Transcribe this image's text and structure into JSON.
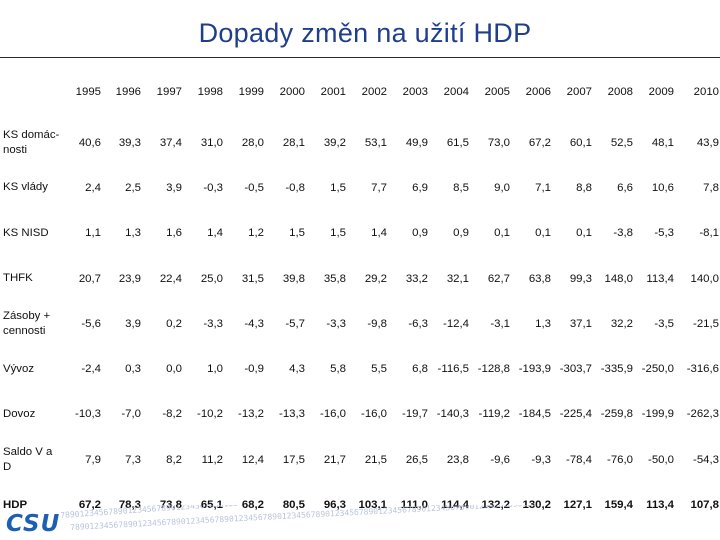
{
  "title": "Dopady změn na užití HDP",
  "years": [
    "1995",
    "1996",
    "1997",
    "1998",
    "1999",
    "2000",
    "2001",
    "2002",
    "2003",
    "2004",
    "2005",
    "2006",
    "2007",
    "2008",
    "2009",
    "2010"
  ],
  "rows": [
    {
      "label": "KS domác-nosti",
      "values": [
        "40,6",
        "39,3",
        "37,4",
        "31,0",
        "28,0",
        "28,1",
        "39,2",
        "53,1",
        "49,9",
        "61,5",
        "73,0",
        "67,2",
        "60,1",
        "52,5",
        "48,1",
        "43,9"
      ]
    },
    {
      "label": "KS vlády",
      "values": [
        "2,4",
        "2,5",
        "3,9",
        "-0,3",
        "-0,5",
        "-0,8",
        "1,5",
        "7,7",
        "6,9",
        "8,5",
        "9,0",
        "7,1",
        "8,8",
        "6,6",
        "10,6",
        "7,8"
      ]
    },
    {
      "label": "KS NISD",
      "values": [
        "1,1",
        "1,3",
        "1,6",
        "1,4",
        "1,2",
        "1,5",
        "1,5",
        "1,4",
        "0,9",
        "0,9",
        "0,1",
        "0,1",
        "0,1",
        "-3,8",
        "-5,3",
        "-8,1"
      ]
    },
    {
      "label": "THFK",
      "values": [
        "20,7",
        "23,9",
        "22,4",
        "25,0",
        "31,5",
        "39,8",
        "35,8",
        "29,2",
        "33,2",
        "32,1",
        "62,7",
        "63,8",
        "99,3",
        "148,0",
        "113,4",
        "140,0"
      ]
    },
    {
      "label": "Zásoby + cennosti",
      "values": [
        "-5,6",
        "3,9",
        "0,2",
        "-3,3",
        "-4,3",
        "-5,7",
        "-3,3",
        "-9,8",
        "-6,3",
        "-12,4",
        "-3,1",
        "1,3",
        "37,1",
        "32,2",
        "-3,5",
        "-21,5"
      ]
    },
    {
      "label": "Vývoz",
      "values": [
        "-2,4",
        "0,3",
        "0,0",
        "1,0",
        "-0,9",
        "4,3",
        "5,8",
        "5,5",
        "6,8",
        "-116,5",
        "-128,8",
        "-193,9",
        "-303,7",
        "-335,9",
        "-250,0",
        "-316,6"
      ]
    },
    {
      "label": "Dovoz",
      "values": [
        "-10,3",
        "-7,0",
        "-8,2",
        "-10,2",
        "-13,2",
        "-13,3",
        "-16,0",
        "-16,0",
        "-19,7",
        "-140,3",
        "-119,2",
        "-184,5",
        "-225,4",
        "-259,8",
        "-199,9",
        "-262,3"
      ]
    },
    {
      "label": "Saldo V a D",
      "values": [
        "7,9",
        "7,3",
        "8,2",
        "11,2",
        "12,4",
        "17,5",
        "21,7",
        "21,5",
        "26,5",
        "23,8",
        "-9,6",
        "-9,3",
        "-78,4",
        "-76,0",
        "-50,0",
        "-54,3"
      ]
    },
    {
      "label": "HDP",
      "values": [
        "67,2",
        "78,3",
        "73,8",
        "65,1",
        "68,2",
        "80,5",
        "96,3",
        "103,1",
        "111,0",
        "114,4",
        "132,2",
        "130,2",
        "127,1",
        "159,4",
        "113,4",
        "107,8"
      ]
    }
  ],
  "footer": {
    "logo_text": "CSU",
    "watermark_digits": "78901234567890123456789012345678901234567890123456789012345678901234567890123456789012345678901234567890"
  }
}
